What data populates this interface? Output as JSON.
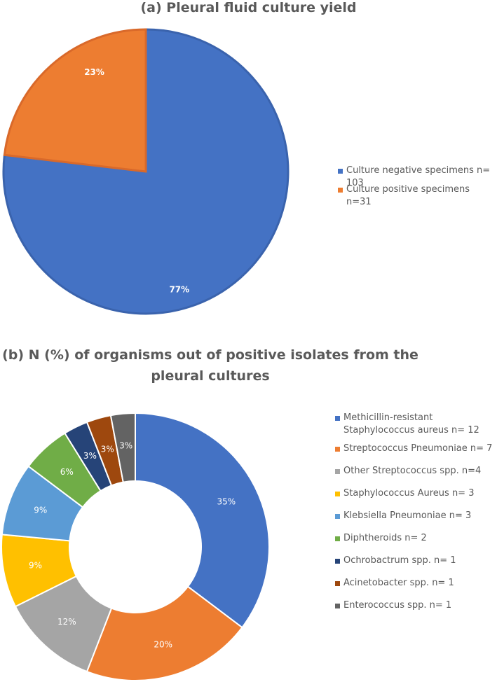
{
  "chart_data": [
    {
      "type": "pie",
      "title": "(a) Pleural fluid culture yield",
      "slices": [
        {
          "label": "Culture negative specimens n= 103",
          "value": 103,
          "pct_label": "77%",
          "color": "#4472C4"
        },
        {
          "label": "Culture positive specimens n=31",
          "value": 31,
          "pct_label": "23%",
          "color": "#ED7D31"
        }
      ],
      "legend_position": "right"
    },
    {
      "type": "donut",
      "title": "(b) N (%) of organisms out of positive isolates from the pleural cultures",
      "slices": [
        {
          "label": "Methicillin-resistant Staphylococcus aureus n= 12",
          "value": 12,
          "pct_label": "35%",
          "color": "#4472C4"
        },
        {
          "label": "Streptococcus Pneumoniae n= 7",
          "value": 7,
          "pct_label": "20%",
          "color": "#ED7D31"
        },
        {
          "label": "Other Streptococcus spp. n=4",
          "value": 4,
          "pct_label": "12%",
          "color": "#A5A5A5"
        },
        {
          "label": "Staphylococcus Aureus n= 3",
          "value": 3,
          "pct_label": "9%",
          "color": "#FFC000"
        },
        {
          "label": "Klebsiella Pneumoniae n= 3",
          "value": 3,
          "pct_label": "9%",
          "color": "#5B9BD5"
        },
        {
          "label": "Diphtheroids n= 2",
          "value": 2,
          "pct_label": "6%",
          "color": "#70AD47"
        },
        {
          "label": "Ochrobactrum spp. n= 1",
          "value": 1,
          "pct_label": "3%",
          "color": "#264478"
        },
        {
          "label": "Acinetobacter spp. n= 1",
          "value": 1,
          "pct_label": "3%",
          "color": "#9E480E"
        },
        {
          "label": "Enterococcus spp. n= 1",
          "value": 1,
          "pct_label": "3%",
          "color": "#636363"
        }
      ],
      "legend_position": "right"
    }
  ]
}
